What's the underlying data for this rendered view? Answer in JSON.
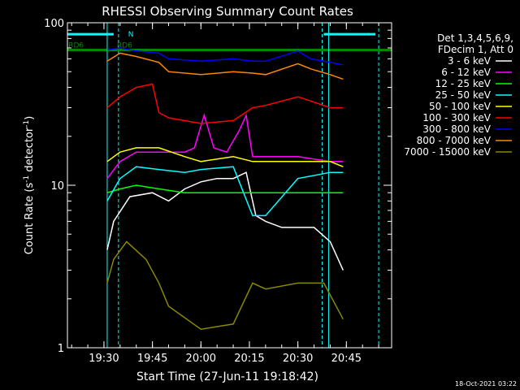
{
  "chart_data": {
    "type": "line",
    "title": "RHESSI Observing Summary Count Rates",
    "xlabel": "Start Time (27-Jun-11 19:18:42)",
    "ylabel": "Count Rate (s⁻¹ detector⁻¹)",
    "ylabel_main": "Count Rate (s",
    "ylabel_sup1": "-1",
    "ylabel_mid": " detector",
    "ylabel_sup2": "-1",
    "ylabel_end": ")",
    "yscale": "log",
    "xlim": [
      "19:18:42",
      "20:59:00"
    ],
    "ylim": [
      1,
      100
    ],
    "x_ticks": [
      "19:30",
      "19:45",
      "20:00",
      "20:15",
      "20:30",
      "20:45"
    ],
    "y_ticks": [
      "1",
      "10",
      "100"
    ],
    "legend_header": [
      "Det 1,3,4,5,6,9,",
      "FDecim 1, Att 0"
    ],
    "legend_position": "right",
    "timestamp": "18-Oct-2021 03:22",
    "annotations": [
      {
        "text": "N",
        "color": "#00ffff",
        "x": "19:37:30"
      },
      {
        "text": "RD6",
        "color": "#008800",
        "x": "19:19:00"
      },
      {
        "text": "RD6",
        "color": "#008800",
        "x": "19:34:00"
      }
    ],
    "orbit_flags": [
      {
        "label": "night",
        "color": "#00ffff",
        "y": 85,
        "ranges": [
          [
            "19:18:42",
            "19:33:00"
          ],
          [
            "20:38:00",
            "20:54:00"
          ]
        ]
      },
      {
        "label": "RD6",
        "color": "#008800",
        "y": 68,
        "ranges": [
          [
            "19:18:42",
            "20:59:00"
          ]
        ]
      }
    ],
    "vertical_lines": [
      {
        "color": "#00ffff",
        "dashed": false,
        "x": "19:31:00"
      },
      {
        "color": "#00ffff",
        "dashed": true,
        "x": "19:34:30"
      },
      {
        "color": "#00ffff",
        "dashed": true,
        "x": "20:37:30"
      },
      {
        "color": "#00ffff",
        "dashed": false,
        "x": "20:39:30"
      },
      {
        "color": "#00ffff",
        "dashed": true,
        "x": "20:55:00"
      }
    ],
    "series": [
      {
        "name": "3 - 6 keV",
        "color": "#ffffff",
        "x": [
          "19:31:00",
          "19:33:00",
          "19:38:00",
          "19:45:00",
          "19:50:00",
          "19:55:00",
          "20:00:00",
          "20:05:00",
          "20:10:00",
          "20:14:00",
          "20:17:00",
          "20:20:00",
          "20:25:00",
          "20:30:00",
          "20:35:00",
          "20:40:00",
          "20:44:00"
        ],
        "values": [
          4,
          6,
          8.5,
          9,
          8,
          9.5,
          10.5,
          11,
          11,
          12,
          6.5,
          6,
          5.5,
          5.5,
          5.5,
          4.5,
          3
        ]
      },
      {
        "name": "6 - 12 keV",
        "color": "#ff00ff",
        "x": [
          "19:31:00",
          "19:35:00",
          "19:40:00",
          "19:47:00",
          "19:50:00",
          "19:55:00",
          "19:58:00",
          "20:01:00",
          "20:04:00",
          "20:08:00",
          "20:12:00",
          "20:14:00",
          "20:16:00",
          "20:20:00",
          "20:30:00",
          "20:40:00",
          "20:44:00"
        ],
        "values": [
          11,
          14,
          16,
          16,
          16,
          16,
          17,
          27,
          17,
          16,
          22,
          27,
          15,
          15,
          15,
          14,
          14
        ]
      },
      {
        "name": "12 - 25 keV",
        "color": "#00ff00",
        "x": [
          "19:31:00",
          "19:35:00",
          "19:40:00",
          "19:47:00",
          "19:55:00",
          "20:00:00",
          "20:10:00",
          "20:16:00",
          "20:20:00",
          "20:30:00",
          "20:40:00",
          "20:44:00"
        ],
        "values": [
          9,
          9.5,
          10,
          9.5,
          9,
          9,
          9,
          9,
          9,
          9,
          9,
          9
        ]
      },
      {
        "name": "25 - 50 keV",
        "color": "#00ffff",
        "x": [
          "19:31:00",
          "19:35:00",
          "19:40:00",
          "19:47:00",
          "19:55:00",
          "20:00:00",
          "20:10:00",
          "20:16:00",
          "20:20:00",
          "20:30:00",
          "20:40:00",
          "20:44:00"
        ],
        "values": [
          8,
          11,
          13,
          12.5,
          12,
          12.5,
          13,
          6.5,
          6.5,
          11,
          12,
          12
        ]
      },
      {
        "name": "50 - 100 keV",
        "color": "#ffff00",
        "x": [
          "19:31:00",
          "19:35:00",
          "19:40:00",
          "19:47:00",
          "19:55:00",
          "20:00:00",
          "20:10:00",
          "20:16:00",
          "20:20:00",
          "20:30:00",
          "20:40:00",
          "20:44:00"
        ],
        "values": [
          14,
          16,
          17,
          17,
          15,
          14,
          15,
          14,
          14,
          14,
          14,
          13
        ]
      },
      {
        "name": "100 - 300 keV",
        "color": "#ff0000",
        "x": [
          "19:31:00",
          "19:35:00",
          "19:40:00",
          "19:45:00",
          "19:47:00",
          "19:50:00",
          "20:00:00",
          "20:10:00",
          "20:16:00",
          "20:20:00",
          "20:30:00",
          "20:34:00",
          "20:40:00",
          "20:44:00"
        ],
        "values": [
          30,
          35,
          40,
          42,
          28,
          26,
          24,
          25,
          30,
          31,
          35,
          33,
          30,
          30
        ]
      },
      {
        "name": "300 - 800 keV",
        "color": "#0000ff",
        "x": [
          "19:31:00",
          "19:35:00",
          "19:40:00",
          "19:47:00",
          "19:50:00",
          "20:00:00",
          "20:10:00",
          "20:16:00",
          "20:20:00",
          "20:30:00",
          "20:34:00",
          "20:40:00",
          "20:44:00"
        ],
        "values": [
          68,
          70,
          67,
          65,
          60,
          58,
          60,
          58,
          58,
          67,
          60,
          57,
          55
        ]
      },
      {
        "name": "800 - 7000 keV",
        "color": "#ff8800",
        "x": [
          "19:31:00",
          "19:35:00",
          "19:40:00",
          "19:47:00",
          "19:50:00",
          "20:00:00",
          "20:10:00",
          "20:16:00",
          "20:20:00",
          "20:30:00",
          "20:34:00",
          "20:40:00",
          "20:44:00"
        ],
        "values": [
          58,
          65,
          62,
          57,
          50,
          48,
          50,
          49,
          48,
          56,
          52,
          48,
          45
        ]
      },
      {
        "name": "7000 - 15000 keV",
        "color": "#888800",
        "x": [
          "19:31:00",
          "19:33:00",
          "19:37:00",
          "19:43:00",
          "19:47:00",
          "19:50:00",
          "20:00:00",
          "20:10:00",
          "20:16:00",
          "20:20:00",
          "20:30:00",
          "20:38:00",
          "20:44:00"
        ],
        "values": [
          2.5,
          3.5,
          4.5,
          3.5,
          2.5,
          1.8,
          1.3,
          1.4,
          2.5,
          2.3,
          2.5,
          2.5,
          1.5
        ]
      }
    ]
  }
}
